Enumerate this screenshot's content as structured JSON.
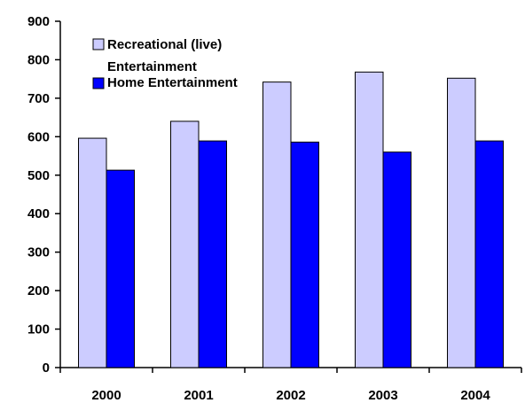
{
  "chart_data": {
    "type": "bar",
    "title": "",
    "xlabel": "",
    "ylabel": "",
    "categories": [
      "2000",
      "2001",
      "2002",
      "2003",
      "2004"
    ],
    "series": [
      {
        "name": "Recreational (live) Entertainment",
        "legend_line1": "Recreational (live)",
        "legend_line2": "Entertainment",
        "color": "#ccccff",
        "values": [
          596,
          640,
          742,
          768,
          752
        ]
      },
      {
        "name": "Home Entertainment",
        "legend_line1": "Home Entertainment",
        "color": "#0000ff",
        "values": [
          513,
          589,
          586,
          560,
          589
        ]
      }
    ],
    "ylim": [
      0,
      900
    ],
    "yticks": [
      "0",
      "100",
      "200",
      "300",
      "400",
      "500",
      "600",
      "700",
      "800",
      "900"
    ],
    "legend_position": "top-left",
    "grid": false
  }
}
